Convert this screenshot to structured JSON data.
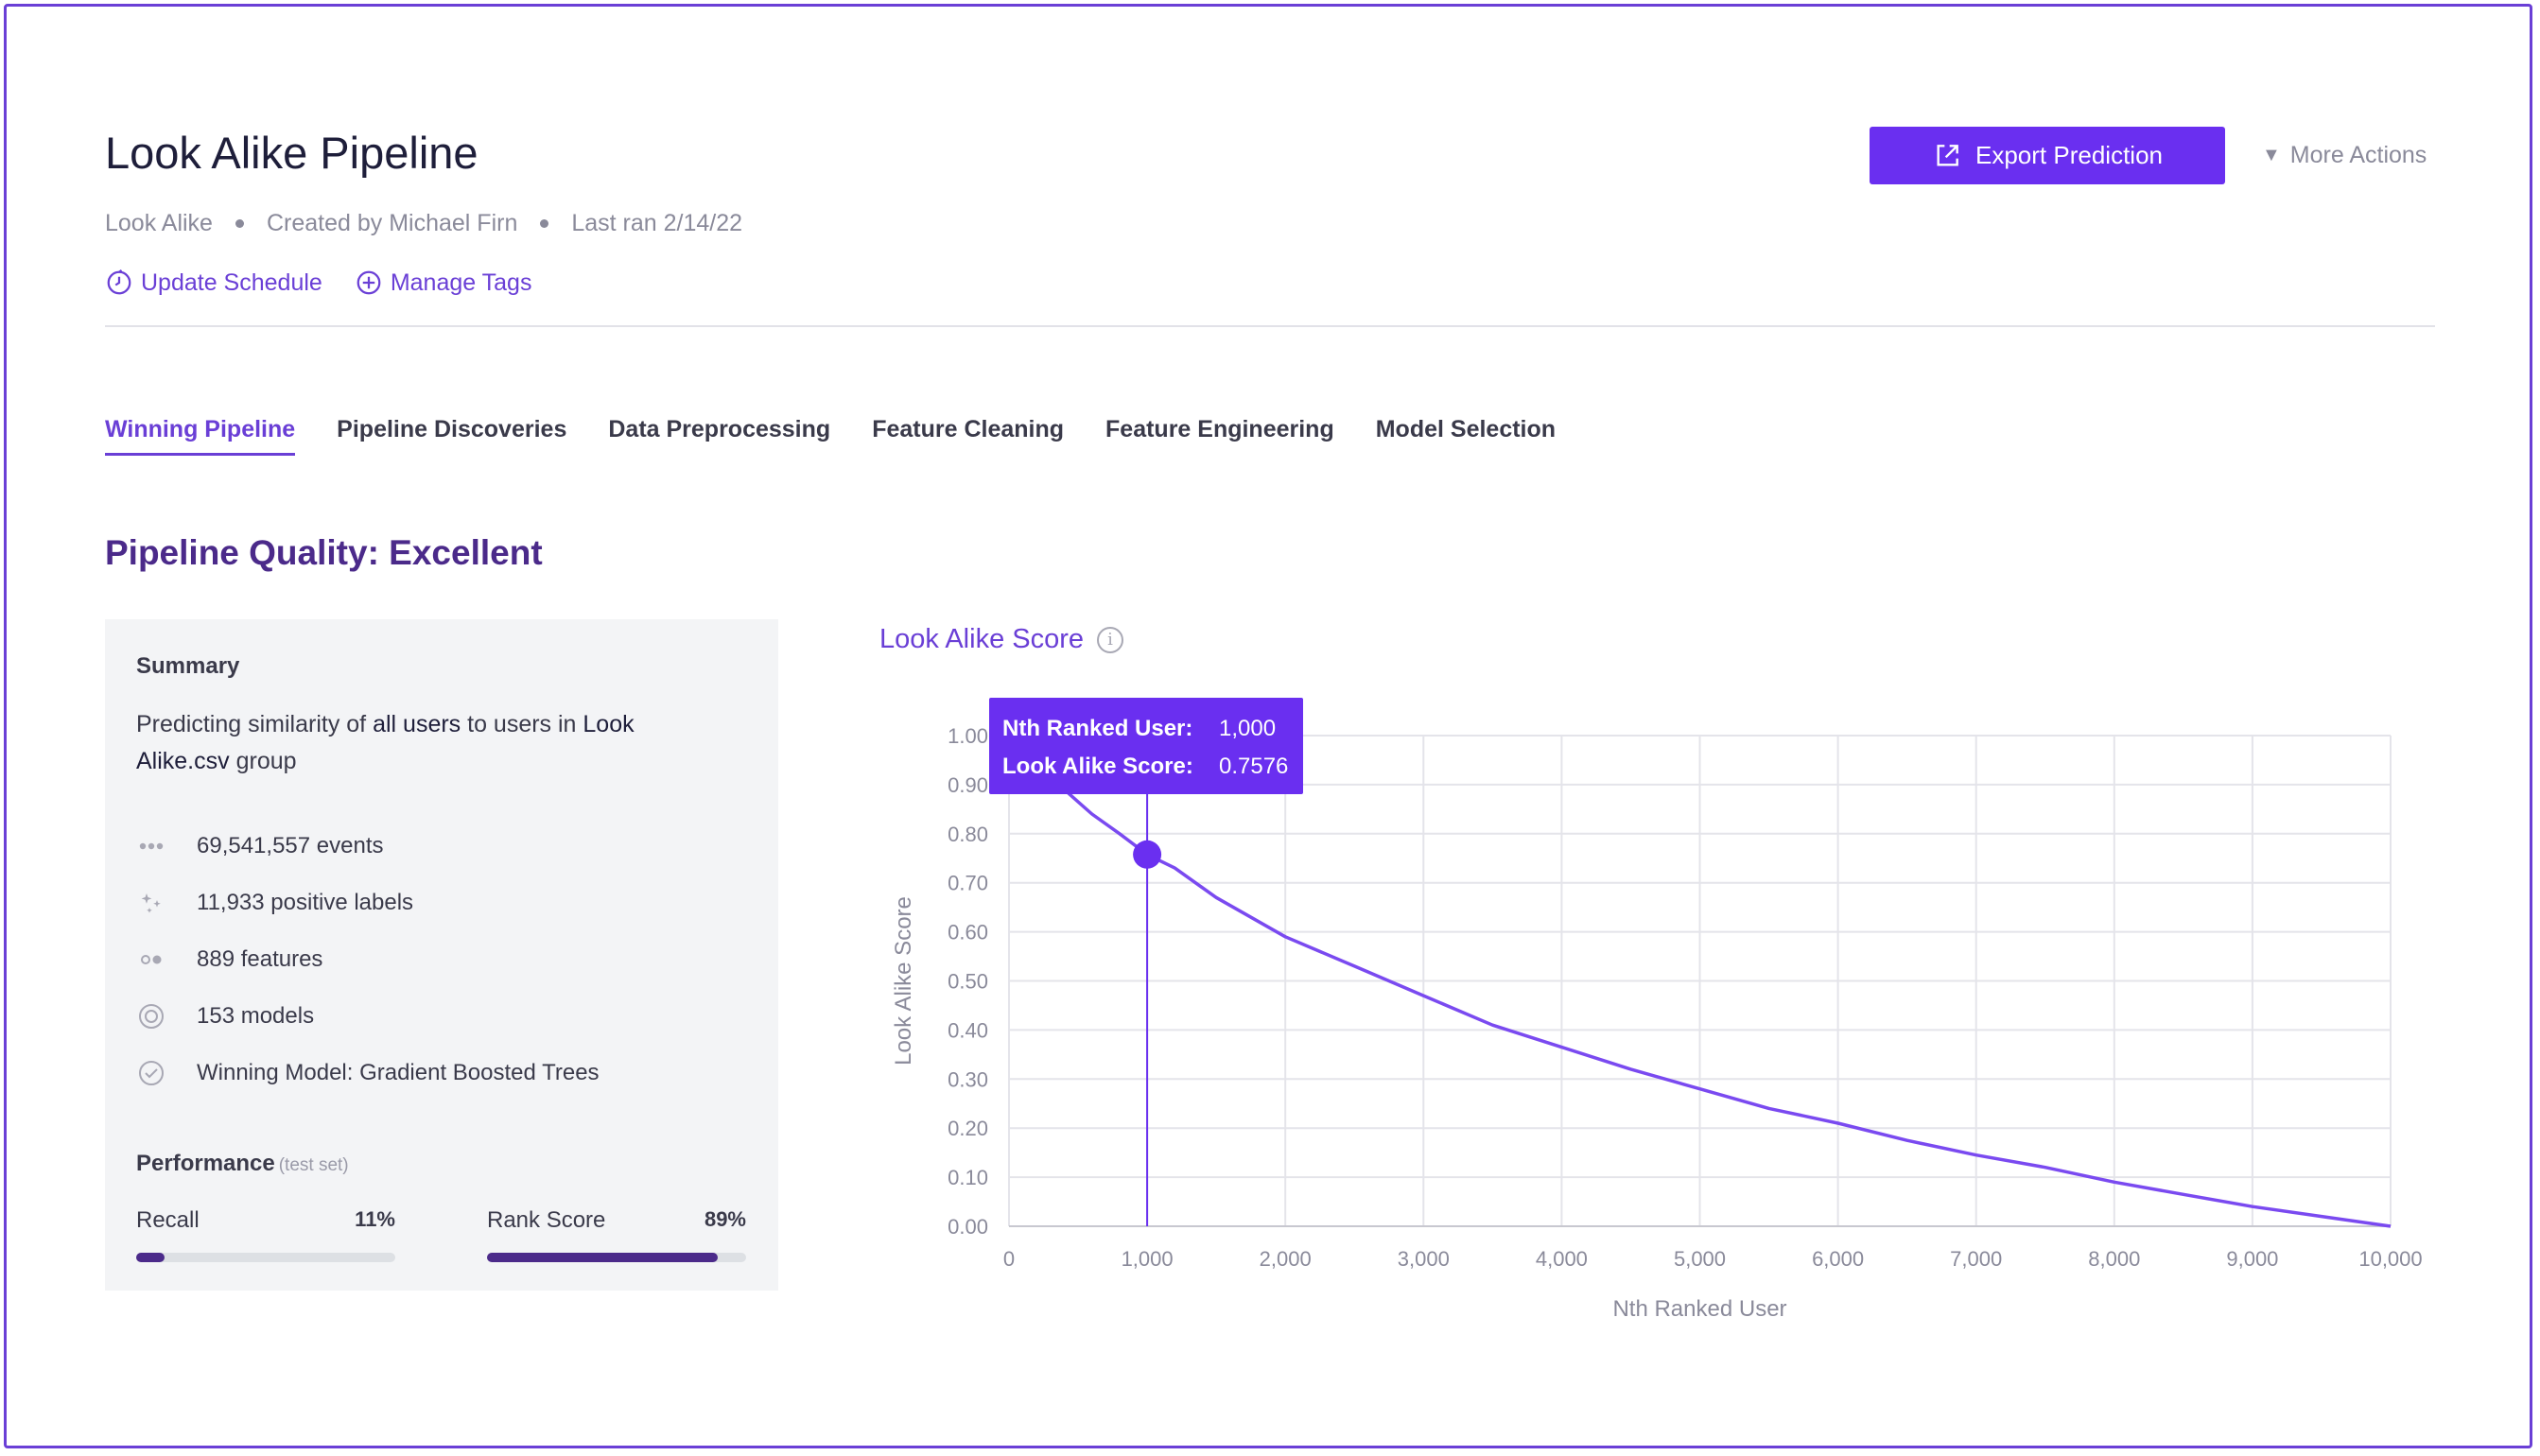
{
  "header": {
    "title": "Look Alike Pipeline",
    "meta": [
      "Look Alike",
      "Created by Michael Firn",
      "Last ran 2/14/22"
    ],
    "links": {
      "update_schedule": "Update Schedule",
      "manage_tags": "Manage Tags"
    },
    "export_label": "Export Prediction",
    "more_actions_label": "More Actions"
  },
  "tabs": [
    "Winning Pipeline",
    "Pipeline Discoveries",
    "Data Preprocessing",
    "Feature Cleaning",
    "Feature Engineering",
    "Model Selection"
  ],
  "active_tab": "Winning Pipeline",
  "quality_heading": "Pipeline Quality: Excellent",
  "summary": {
    "title": "Summary",
    "desc_parts": [
      "Predicting similarity of ",
      "all users",
      " to users in ",
      "Look Alike.csv",
      " group"
    ],
    "stats": [
      {
        "icon": "dots-icon",
        "text": "69,541,557 events"
      },
      {
        "icon": "sparkle-icon",
        "text": "11,933 positive labels"
      },
      {
        "icon": "toggle-dots-icon",
        "text": "889 features"
      },
      {
        "icon": "target-icon",
        "text": "153 models"
      },
      {
        "icon": "check-circle-icon",
        "text": "Winning Model: Gradient Boosted Trees"
      }
    ],
    "performance_title": "Performance",
    "performance_note": "(test set)",
    "metrics": [
      {
        "name": "Recall",
        "value_label": "11%",
        "value": 0.11
      },
      {
        "name": "Rank Score",
        "value_label": "89%",
        "value": 0.89
      }
    ]
  },
  "colors": {
    "accent": "#6a3fd6",
    "button": "#6a2ff0",
    "heading": "#4b2a8a",
    "line": "#7a4af0",
    "tooltip": "#6a2ff0"
  },
  "chart_data": {
    "type": "line",
    "title": "Look Alike Score",
    "xlabel": "Nth Ranked User",
    "ylabel": "Look Alike Score",
    "xlim": [
      0,
      10000
    ],
    "ylim": [
      0,
      1
    ],
    "x_ticks": [
      "0",
      "1,000",
      "2,000",
      "3,000",
      "4,000",
      "5,000",
      "6,000",
      "7,000",
      "8,000",
      "9,000",
      "10,000"
    ],
    "y_ticks": [
      "0.00",
      "0.10",
      "0.20",
      "0.30",
      "0.40",
      "0.50",
      "0.60",
      "0.70",
      "0.80",
      "0.90",
      "1.00"
    ],
    "grid": true,
    "x": [
      400,
      600,
      800,
      1000,
      1200,
      1500,
      2000,
      2500,
      3000,
      3500,
      4000,
      4500,
      5000,
      5500,
      6000,
      6500,
      7000,
      7500,
      8000,
      8500,
      9000,
      9500,
      10000
    ],
    "y": [
      0.89,
      0.84,
      0.8,
      0.7576,
      0.73,
      0.67,
      0.59,
      0.53,
      0.47,
      0.41,
      0.365,
      0.32,
      0.28,
      0.24,
      0.21,
      0.175,
      0.145,
      0.12,
      0.09,
      0.065,
      0.04,
      0.02,
      0.0
    ],
    "highlight": {
      "x": 1000,
      "y": 0.7576,
      "x_label": "Nth Ranked User:",
      "x_value": "1,000",
      "y_label": "Look Alike Score:",
      "y_value": "0.7576"
    }
  }
}
